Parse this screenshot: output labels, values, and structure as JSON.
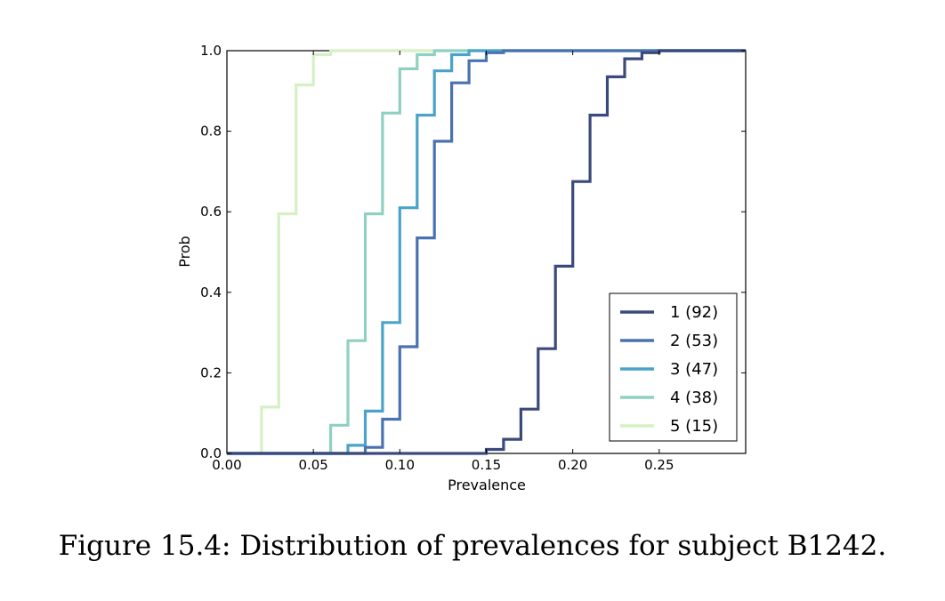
{
  "caption": "Figure 15.4: Distribution of prevalences for subject B1242.",
  "chart_data": {
    "type": "line",
    "step": true,
    "xlabel": "Prevalence",
    "ylabel": "Prob",
    "xlim": [
      0,
      0.3
    ],
    "ylim": [
      0,
      1
    ],
    "xticks": [
      0.0,
      0.05,
      0.1,
      0.15,
      0.2,
      0.25
    ],
    "xtick_labels": [
      "0.00",
      "0.05",
      "0.10",
      "0.15",
      "0.20",
      "0.25"
    ],
    "yticks": [
      0.0,
      0.2,
      0.4,
      0.6,
      0.8,
      1.0
    ],
    "ytick_labels": [
      "0.0",
      "0.2",
      "0.4",
      "0.6",
      "0.8",
      "1.0"
    ],
    "grid": false,
    "legend_position": "bottom-right",
    "series": [
      {
        "name": "1 (92)",
        "color": "#3b4a7a",
        "x": [
          0,
          0.15,
          0.16,
          0.17,
          0.18,
          0.19,
          0.2,
          0.21,
          0.22,
          0.23,
          0.24,
          0.25,
          0.3
        ],
        "y": [
          0,
          0.01,
          0.035,
          0.11,
          0.26,
          0.465,
          0.675,
          0.84,
          0.935,
          0.98,
          0.995,
          1.0,
          1.0
        ]
      },
      {
        "name": "2 (53)",
        "color": "#4a72b0",
        "x": [
          0,
          0.08,
          0.09,
          0.1,
          0.11,
          0.12,
          0.13,
          0.14,
          0.15,
          0.16,
          0.3
        ],
        "y": [
          0,
          0.015,
          0.085,
          0.265,
          0.535,
          0.775,
          0.92,
          0.975,
          0.995,
          1.0,
          1.0
        ]
      },
      {
        "name": "3 (47)",
        "color": "#4ba3c8",
        "x": [
          0,
          0.07,
          0.08,
          0.09,
          0.1,
          0.11,
          0.12,
          0.13,
          0.14,
          0.3
        ],
        "y": [
          0,
          0.02,
          0.105,
          0.325,
          0.61,
          0.84,
          0.95,
          0.99,
          1.0,
          1.0
        ]
      },
      {
        "name": "4 (38)",
        "color": "#8fd0c2",
        "x": [
          0,
          0.06,
          0.07,
          0.08,
          0.09,
          0.1,
          0.11,
          0.12,
          0.3
        ],
        "y": [
          0,
          0.07,
          0.28,
          0.595,
          0.845,
          0.955,
          0.99,
          1.0,
          1.0
        ]
      },
      {
        "name": "5 (15)",
        "color": "#d6f0c4",
        "x": [
          0,
          0.02,
          0.03,
          0.04,
          0.05,
          0.06,
          0.3
        ],
        "y": [
          0,
          0.115,
          0.595,
          0.915,
          0.99,
          1.0,
          1.0
        ]
      }
    ]
  }
}
